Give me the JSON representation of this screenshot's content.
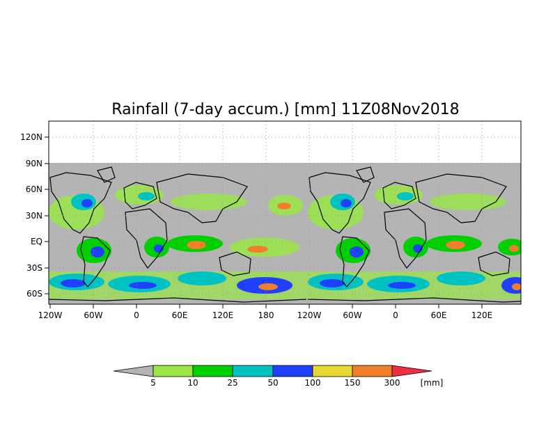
{
  "title": "Rainfall (7-day accum.) [mm] 11Z08Nov2018",
  "map": {
    "lat_ticks": [
      "120N",
      "90N",
      "60N",
      "30N",
      "EQ",
      "30S",
      "60S"
    ],
    "lon_ticks": [
      "120W",
      "60W",
      "0",
      "60E",
      "120E",
      "180",
      "120W",
      "60W",
      "0",
      "60E",
      "120E"
    ],
    "no_data_color": "#b4b4b4",
    "land_outline_color": "#000000"
  },
  "colorbar": {
    "unit": "[mm]",
    "thresholds": [
      "5",
      "10",
      "25",
      "50",
      "100",
      "150",
      "300"
    ],
    "colors": [
      "#b4b4b4",
      "#99e645",
      "#00d000",
      "#00c2c2",
      "#2040ff",
      "#e6d830",
      "#f07e2a",
      "#f03040"
    ]
  }
}
